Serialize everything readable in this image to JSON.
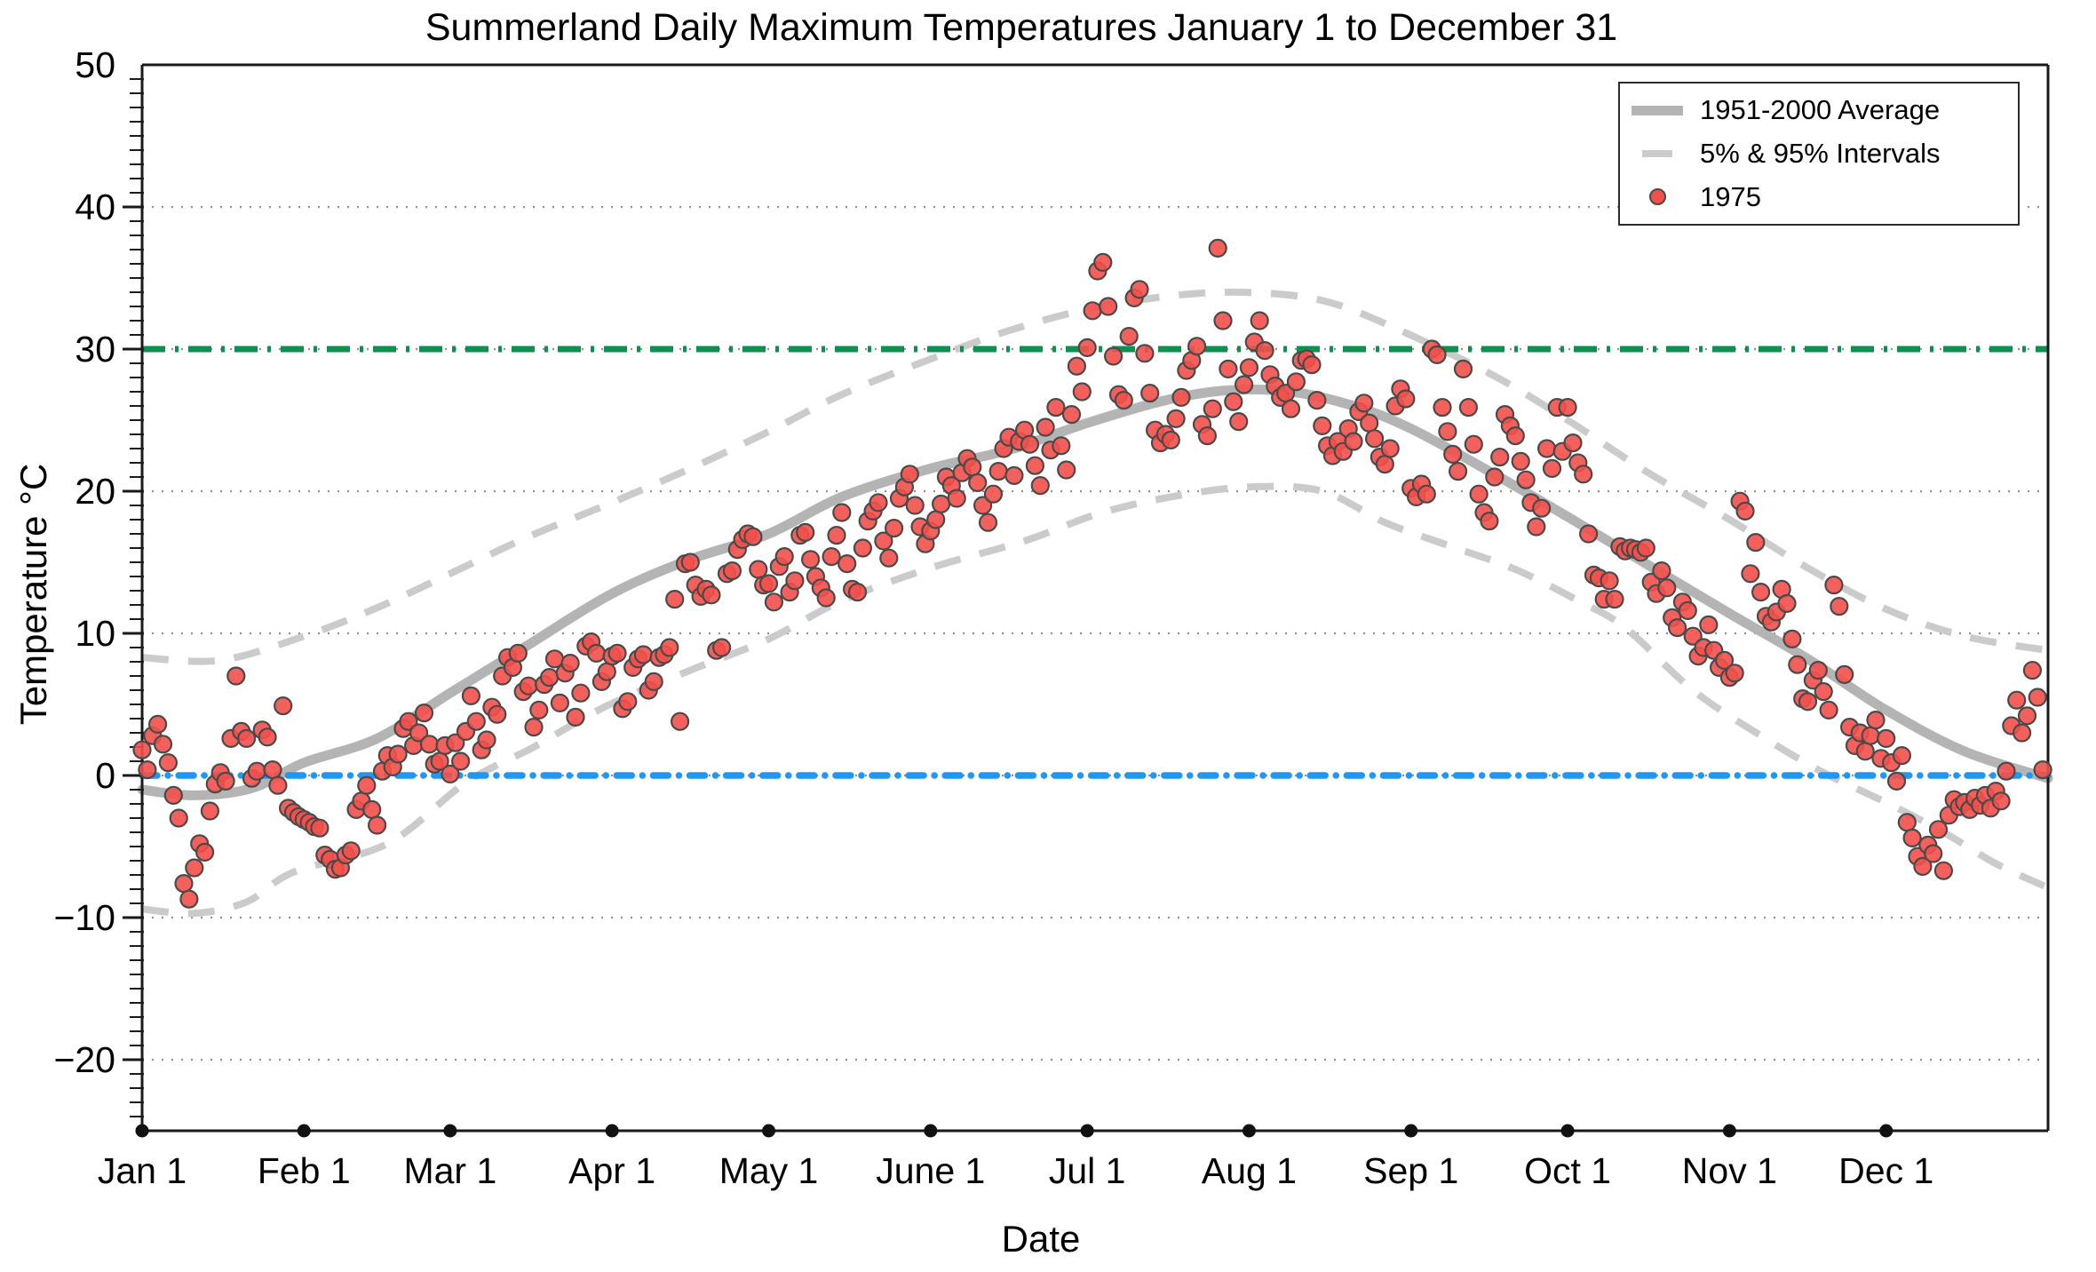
{
  "title": "Summerland Daily Maximum Temperatures January 1 to December 31",
  "colors": {
    "scatter_fill": "#f3504a",
    "scatter_stroke": "#4a4a4a",
    "average_line": "#b4b4b4",
    "interval_line": "#cbcbcb",
    "green_reference": "#0e9150",
    "blue_reference": "#2196f3",
    "grid": "#909090",
    "axis": "#1a1a1a"
  },
  "legend": {
    "items": [
      {
        "label": "1951-2000 Average",
        "swatch": "thick-gray-line"
      },
      {
        "label": "5% & 95% Intervals",
        "swatch": "gray-dash"
      },
      {
        "label": "1975",
        "swatch": "red-dot"
      }
    ]
  },
  "chart_data": {
    "type": "scatter",
    "title": "Summerland Daily Maximum Temperatures January 1 to December 31",
    "xlabel": "Date",
    "ylabel": "Temperature °C",
    "x_unit": "day_of_year",
    "x_range": [
      0,
      365
    ],
    "ylim": [
      -25,
      50
    ],
    "grid": "dotted-horizontal-at-major-ticks",
    "legend_position": "top-right",
    "y_major_ticks": [
      50,
      40,
      30,
      20,
      10,
      0,
      -10,
      -20
    ],
    "x_ticks": [
      {
        "label": "Jan 1",
        "day": 0
      },
      {
        "label": "Feb 1",
        "day": 31
      },
      {
        "label": "Mar 1",
        "day": 59
      },
      {
        "label": "Apr 1",
        "day": 90
      },
      {
        "label": "May 1",
        "day": 120
      },
      {
        "label": "June 1",
        "day": 151
      },
      {
        "label": "Jul 1",
        "day": 181
      },
      {
        "label": "Aug 1",
        "day": 212
      },
      {
        "label": "Sep 1",
        "day": 243
      },
      {
        "label": "Oct 1",
        "day": 273
      },
      {
        "label": "Nov 1",
        "day": 304
      },
      {
        "label": "Dec 1",
        "day": 334
      }
    ],
    "reference_lines": [
      {
        "name": "30-degree-line",
        "value": 30,
        "color": "#0e9150",
        "style": "dash-dot"
      },
      {
        "name": "0-degree-line",
        "value": 0,
        "color": "#2196f3",
        "style": "dash-dot"
      }
    ],
    "series": [
      {
        "name": "1951-2000 Average",
        "type": "line",
        "style": "thick-solid",
        "color": "#b4b4b4",
        "points": [
          [
            0,
            -1.0
          ],
          [
            10,
            -1.4
          ],
          [
            21,
            -0.9
          ],
          [
            31,
            0.9
          ],
          [
            45,
            2.6
          ],
          [
            59,
            5.8
          ],
          [
            74,
            9.2
          ],
          [
            90,
            12.8
          ],
          [
            105,
            15.2
          ],
          [
            120,
            17.0
          ],
          [
            134,
            19.6
          ],
          [
            151,
            21.6
          ],
          [
            166,
            22.9
          ],
          [
            181,
            24.8
          ],
          [
            196,
            26.4
          ],
          [
            208,
            27.1
          ],
          [
            220,
            27.0
          ],
          [
            232,
            26.0
          ],
          [
            243,
            24.4
          ],
          [
            258,
            21.4
          ],
          [
            273,
            18.2
          ],
          [
            288,
            14.9
          ],
          [
            304,
            11.4
          ],
          [
            319,
            8.2
          ],
          [
            334,
            4.6
          ],
          [
            349,
            1.7
          ],
          [
            365,
            -0.2
          ]
        ]
      },
      {
        "name": "95% Interval",
        "type": "line",
        "style": "dashed",
        "color": "#cbcbcb",
        "points": [
          [
            0,
            8.3
          ],
          [
            15,
            8.1
          ],
          [
            31,
            9.8
          ],
          [
            45,
            11.8
          ],
          [
            59,
            14.2
          ],
          [
            74,
            16.8
          ],
          [
            90,
            19.2
          ],
          [
            105,
            21.6
          ],
          [
            120,
            24.2
          ],
          [
            134,
            26.8
          ],
          [
            151,
            29.3
          ],
          [
            166,
            31.3
          ],
          [
            181,
            32.8
          ],
          [
            196,
            33.7
          ],
          [
            210,
            34.0
          ],
          [
            225,
            33.5
          ],
          [
            238,
            31.8
          ],
          [
            258,
            28.3
          ],
          [
            273,
            25.0
          ],
          [
            288,
            21.4
          ],
          [
            304,
            18.0
          ],
          [
            319,
            14.6
          ],
          [
            334,
            11.7
          ],
          [
            349,
            9.8
          ],
          [
            365,
            8.8
          ]
        ]
      },
      {
        "name": "5% Interval",
        "type": "line",
        "style": "dashed",
        "color": "#cbcbcb",
        "points": [
          [
            0,
            -9.4
          ],
          [
            10,
            -9.7
          ],
          [
            20,
            -8.9
          ],
          [
            29,
            -6.8
          ],
          [
            47,
            -4.8
          ],
          [
            62,
            -0.5
          ],
          [
            75,
            2.0
          ],
          [
            89,
            4.9
          ],
          [
            105,
            7.4
          ],
          [
            120,
            9.6
          ],
          [
            134,
            12.3
          ],
          [
            151,
            14.6
          ],
          [
            169,
            16.5
          ],
          [
            183,
            18.4
          ],
          [
            197,
            19.6
          ],
          [
            212,
            20.3
          ],
          [
            226,
            20.0
          ],
          [
            238,
            17.8
          ],
          [
            250,
            16.2
          ],
          [
            263,
            14.5
          ],
          [
            275,
            12.3
          ],
          [
            284,
            10.4
          ],
          [
            297,
            6.0
          ],
          [
            310,
            2.8
          ],
          [
            322,
            0.2
          ],
          [
            334,
            -1.9
          ],
          [
            345,
            -4.0
          ],
          [
            355,
            -6.2
          ],
          [
            365,
            -7.9
          ]
        ]
      },
      {
        "name": "1975",
        "type": "scatter",
        "color": "#f3504a",
        "daily_max_temps_c": [
          1.8,
          0.4,
          2.8,
          3.6,
          2.2,
          0.9,
          -1.4,
          -3.0,
          -7.6,
          -8.7,
          -6.5,
          -4.8,
          -5.4,
          -2.5,
          -0.6,
          0.2,
          -0.4,
          2.6,
          7.0,
          3.1,
          2.6,
          -0.2,
          0.3,
          3.2,
          2.7,
          0.4,
          -0.7,
          4.9,
          -2.3,
          -2.6,
          -2.9,
          -3.1,
          -3.3,
          -3.6,
          -3.7,
          -5.6,
          -5.9,
          -6.6,
          -6.5,
          -5.6,
          -5.3,
          -2.4,
          -1.8,
          -0.7,
          -2.4,
          -3.5,
          0.3,
          1.4,
          0.6,
          1.5,
          3.3,
          3.8,
          2.1,
          3.0,
          4.4,
          2.2,
          0.8,
          1.0,
          2.1,
          0.1,
          2.3,
          1.0,
          3.1,
          5.6,
          3.8,
          1.8,
          2.5,
          4.8,
          4.3,
          7.0,
          8.3,
          7.6,
          8.6,
          5.9,
          6.3,
          3.4,
          4.6,
          6.4,
          6.9,
          8.2,
          5.1,
          7.2,
          7.9,
          4.1,
          5.8,
          9.1,
          9.4,
          8.6,
          6.6,
          7.3,
          8.4,
          8.6,
          4.7,
          5.2,
          7.6,
          8.2,
          8.5,
          6.0,
          6.6,
          8.3,
          8.5,
          9.0,
          12.4,
          3.8,
          14.9,
          15.0,
          13.4,
          12.6,
          13.1,
          12.7,
          8.8,
          9.0,
          14.2,
          14.4,
          15.9,
          16.6,
          17.0,
          16.8,
          14.5,
          13.4,
          13.5,
          12.2,
          14.7,
          15.4,
          12.9,
          13.7,
          16.9,
          17.1,
          15.2,
          14.0,
          13.2,
          12.5,
          15.4,
          16.9,
          18.5,
          14.9,
          13.1,
          12.9,
          16.0,
          17.9,
          18.6,
          19.2,
          16.5,
          15.3,
          17.4,
          19.5,
          20.3,
          21.2,
          19.0,
          17.5,
          16.3,
          17.2,
          18.0,
          19.1,
          21.0,
          20.4,
          19.5,
          21.3,
          22.3,
          21.7,
          20.6,
          19.0,
          17.8,
          19.8,
          21.4,
          23.0,
          23.8,
          21.1,
          23.5,
          24.3,
          23.3,
          21.8,
          20.4,
          24.5,
          22.9,
          25.9,
          23.2,
          21.5,
          25.4,
          28.8,
          27.0,
          30.1,
          32.7,
          35.5,
          36.1,
          33.0,
          29.5,
          26.8,
          26.4,
          30.9,
          33.6,
          34.2,
          29.7,
          26.9,
          24.3,
          23.4,
          24.0,
          23.6,
          25.1,
          26.6,
          28.5,
          29.2,
          30.2,
          24.7,
          23.9,
          25.8,
          37.1,
          32.0,
          28.6,
          26.3,
          24.9,
          27.5,
          28.7,
          30.5,
          32.0,
          29.9,
          28.2,
          27.4,
          26.6,
          26.9,
          25.8,
          27.7,
          29.2,
          29.3,
          28.9,
          26.4,
          24.6,
          23.2,
          22.5,
          23.5,
          22.8,
          24.4,
          23.5,
          25.6,
          26.2,
          24.8,
          23.7,
          22.4,
          21.9,
          23.0,
          26.0,
          27.2,
          26.5,
          20.2,
          19.6,
          20.5,
          19.8,
          30.0,
          29.6,
          25.9,
          24.2,
          22.6,
          21.4,
          28.6,
          25.9,
          23.3,
          19.8,
          18.5,
          17.9,
          21.0,
          22.4,
          25.4,
          24.6,
          23.9,
          22.1,
          20.8,
          19.2,
          17.5,
          18.8,
          23.0,
          21.6,
          25.9,
          22.8,
          25.9,
          23.4,
          22.0,
          21.2,
          17.0,
          14.1,
          13.9,
          12.4,
          13.7,
          12.4,
          16.1,
          15.8,
          16.0,
          15.9,
          15.7,
          16.0,
          13.6,
          12.8,
          14.4,
          13.2,
          11.1,
          10.4,
          12.2,
          11.6,
          9.8,
          8.4,
          9.0,
          10.6,
          8.8,
          7.6,
          8.1,
          6.9,
          7.2,
          19.3,
          18.6,
          14.2,
          16.4,
          12.9,
          11.2,
          10.8,
          11.5,
          13.1,
          12.1,
          9.6,
          7.8,
          5.4,
          5.2,
          6.7,
          7.4,
          5.9,
          4.6,
          13.4,
          11.9,
          7.1,
          3.4,
          2.1,
          3.0,
          1.7,
          2.8,
          3.9,
          1.2,
          2.6,
          0.9,
          -0.4,
          1.4,
          -3.3,
          -4.4,
          -5.7,
          -6.4,
          -4.9,
          -5.5,
          -3.8,
          -6.7,
          -2.8,
          -1.7,
          -2.2,
          -1.9,
          -2.4,
          -1.6,
          -2.1,
          -1.4,
          -2.3,
          -1.1,
          -1.8,
          0.3,
          3.5,
          5.3,
          3.0,
          4.2,
          7.4,
          5.5,
          0.4
        ]
      }
    ]
  }
}
